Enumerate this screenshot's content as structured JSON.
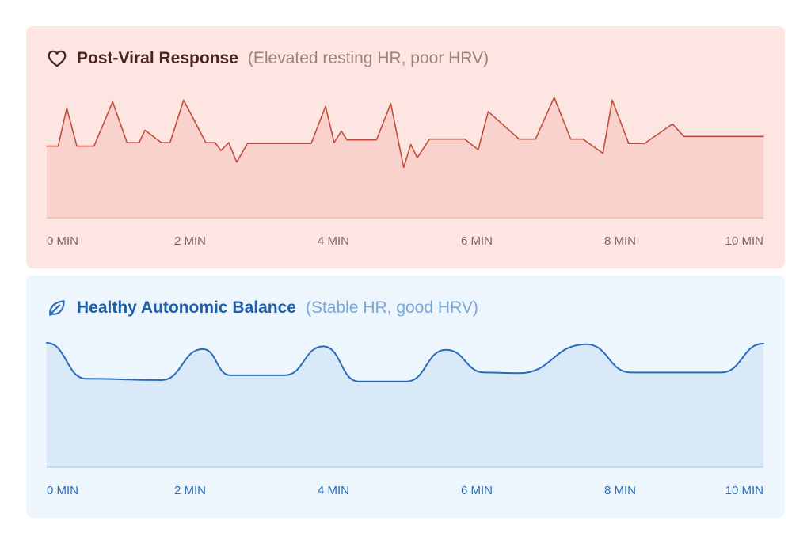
{
  "colors": {
    "top_line": "#c14e3b",
    "top_fill": "#f9d2cd",
    "top_baseline": "#f0b8b0",
    "top_ticks": "#7d6663",
    "bottom_line": "#2a6cb8",
    "bottom_fill": "#d9e9f8",
    "bottom_baseline": "#b5d2f0",
    "bottom_ticks": "#2a6cb8"
  },
  "chart_data": [
    {
      "type": "line",
      "title": "Post-Viral Response",
      "subtitle": "(Elevated resting HR, poor HRV)",
      "icon": "heart-icon",
      "xlabel": "",
      "ylabel": "",
      "xlim": [
        0,
        10
      ],
      "ylim": [
        0,
        100
      ],
      "grid": false,
      "x_ticks": [
        "0 MIN",
        "2 MIN",
        "4 MIN",
        "6 MIN",
        "8 MIN",
        "10 MIN"
      ],
      "x_tick_values": [
        0,
        2,
        4,
        6,
        8,
        10
      ],
      "curve": "linear",
      "series": [
        {
          "x": [
            0,
            0.16,
            0.28,
            0.42,
            0.66,
            0.92,
            1.12,
            1.29,
            1.37,
            1.6,
            1.72,
            1.91,
            2.22,
            2.35,
            2.43,
            2.54,
            2.65,
            2.8,
            3.18,
            3.69,
            3.89,
            4.01,
            4.11,
            4.19,
            4.29,
            4.6,
            4.8,
            4.98,
            5.08,
            5.17,
            5.34,
            5.5,
            5.65,
            5.83,
            6.02,
            6.16,
            6.59,
            6.82,
            7.08,
            7.31,
            7.48,
            7.76,
            7.89,
            8.12,
            8.2,
            8.34,
            8.73,
            8.89,
            8.96,
            10
          ],
          "y": [
            45,
            45,
            88,
            45,
            45,
            95,
            49,
            49,
            63,
            49,
            49,
            97,
            49,
            49,
            40,
            49,
            27,
            48,
            48,
            48,
            90,
            49,
            62,
            52,
            52,
            52,
            93,
            21,
            47,
            32,
            53,
            53,
            53,
            53,
            41,
            84,
            53,
            53,
            100,
            53,
            53,
            37,
            97,
            48,
            48,
            48,
            70,
            56,
            56,
            56
          ]
        }
      ]
    },
    {
      "type": "area",
      "title": "Healthy Autonomic Balance",
      "subtitle": "(Stable HR, good HRV)",
      "icon": "leaf-icon",
      "xlabel": "",
      "ylabel": "",
      "xlim": [
        0,
        10
      ],
      "ylim": [
        0,
        100
      ],
      "grid": false,
      "x_ticks": [
        "0 MIN",
        "2 MIN",
        "4 MIN",
        "6 MIN",
        "8 MIN",
        "10 MIN"
      ],
      "x_tick_values": [
        0,
        2,
        4,
        6,
        8,
        10
      ],
      "curve": "smooth",
      "series": [
        {
          "x": [
            0,
            0.55,
            1.6,
            2.18,
            2.56,
            3.32,
            3.86,
            4.35,
            5.02,
            5.57,
            6.11,
            6.59,
            7.53,
            8.15,
            8.54,
            9.41,
            10
          ],
          "y": [
            100,
            48,
            46,
            91,
            53,
            53,
            95,
            44,
            44,
            90,
            57,
            56,
            98,
            57,
            57,
            57,
            99
          ]
        }
      ]
    }
  ]
}
